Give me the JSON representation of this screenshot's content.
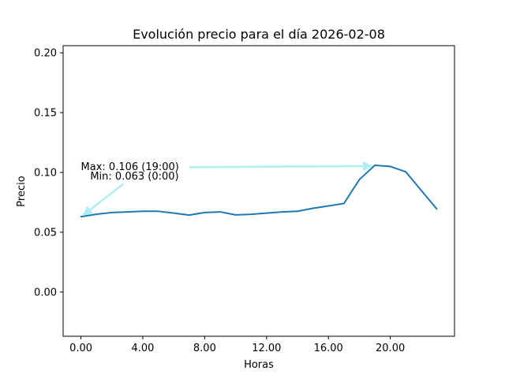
{
  "chart_data": {
    "type": "line",
    "title": "Evolución precio para el día 2026-02-08",
    "xlabel": "Horas",
    "ylabel": "Precio",
    "xlim": [
      -1.15,
      24.15
    ],
    "ylim": [
      -0.037,
      0.206
    ],
    "grid": false,
    "series_color": "#1f77b4",
    "annotation_color": "#aeeef1",
    "xticks": [
      {
        "value": 0,
        "label": "0.00"
      },
      {
        "value": 4,
        "label": "4.00"
      },
      {
        "value": 8,
        "label": "8.00"
      },
      {
        "value": 12,
        "label": "12.00"
      },
      {
        "value": 16,
        "label": "16.00"
      },
      {
        "value": 20,
        "label": "20.00"
      }
    ],
    "yticks": [
      {
        "value": 0.0,
        "label": "0.00"
      },
      {
        "value": 0.05,
        "label": "0.05"
      },
      {
        "value": 0.1,
        "label": "0.10"
      },
      {
        "value": 0.15,
        "label": "0.15"
      },
      {
        "value": 0.2,
        "label": "0.20"
      }
    ],
    "x": [
      0,
      1,
      2,
      3,
      4,
      5,
      6,
      7,
      8,
      9,
      10,
      11,
      12,
      13,
      14,
      15,
      16,
      17,
      18,
      19,
      20,
      21,
      22,
      23
    ],
    "y": [
      0.063,
      0.065,
      0.0665,
      0.067,
      0.0675,
      0.0675,
      0.066,
      0.0643,
      0.0665,
      0.067,
      0.0645,
      0.065,
      0.066,
      0.067,
      0.0675,
      0.07,
      0.072,
      0.074,
      0.094,
      0.106,
      0.105,
      0.1005,
      0.085,
      0.0695
    ],
    "annotations": [
      {
        "text": "Max: 0.106 (19:00)",
        "point": {
          "x": 19,
          "y": 0.106
        },
        "text_at": {
          "x": 0,
          "y": 0.105
        }
      },
      {
        "text": "Min: 0.063 (0:00)",
        "point": {
          "x": 0,
          "y": 0.063
        },
        "text_at": {
          "x": 0.5,
          "y": 0.097
        }
      }
    ]
  }
}
